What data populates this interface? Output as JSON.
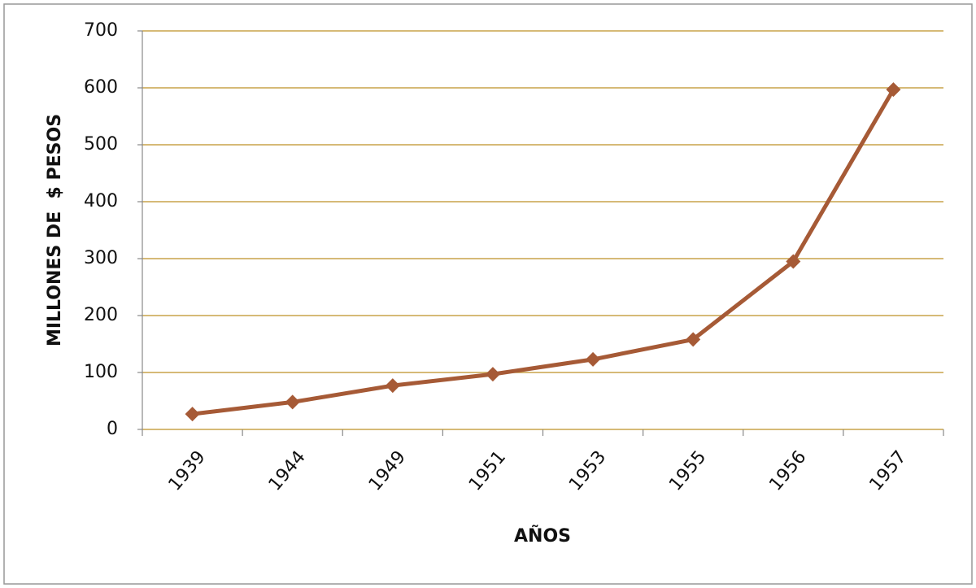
{
  "chart_data": {
    "type": "line",
    "x_label": "AÑOS",
    "y_label": "MILLONES DE  $ PESOS",
    "categories": [
      "1939",
      "1944",
      "1949",
      "1951",
      "1953",
      "1955",
      "1956",
      "1957"
    ],
    "series": [
      {
        "color": "#a65a36",
        "values": [
          27,
          48,
          77,
          97,
          123,
          158,
          295,
          597
        ]
      }
    ],
    "ylim": [
      0,
      700
    ],
    "yticks": [
      0,
      100,
      200,
      300,
      400,
      500,
      600,
      700
    ],
    "grid": true
  }
}
